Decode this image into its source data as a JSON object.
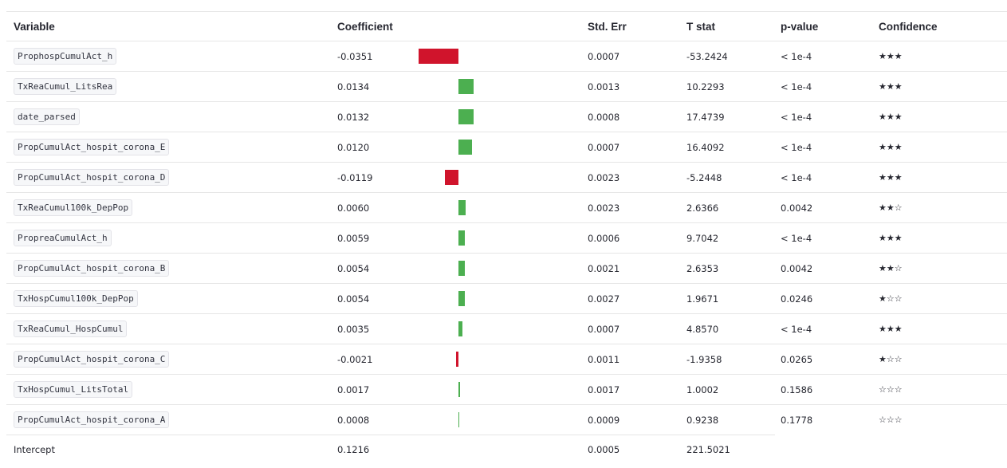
{
  "headers": {
    "variable": "Variable",
    "coefficient": "Coefficient",
    "std_err": "Std. Err",
    "t_stat": "T stat",
    "p_value": "p-value",
    "confidence": "Confidence"
  },
  "colors": {
    "positive": "#4caf50",
    "negative": "#d0142c"
  },
  "bar_scale": {
    "max_abs": 0.0351
  },
  "rows": [
    {
      "variable": "ProphospCumulAct_h",
      "coef": 0.0351,
      "sign": -1,
      "coef_text": "-0.0351",
      "std_err": "0.0007",
      "t_stat": "-53.2424",
      "p_value": "< 1e-4",
      "confidence": "★★★"
    },
    {
      "variable": "TxReaCumul_LitsRea",
      "coef": 0.0134,
      "sign": 1,
      "coef_text": "0.0134",
      "std_err": "0.0013",
      "t_stat": "10.2293",
      "p_value": "< 1e-4",
      "confidence": "★★★"
    },
    {
      "variable": "date_parsed",
      "coef": 0.0132,
      "sign": 1,
      "coef_text": "0.0132",
      "std_err": "0.0008",
      "t_stat": "17.4739",
      "p_value": "< 1e-4",
      "confidence": "★★★"
    },
    {
      "variable": "PropCumulAct_hospit_corona_E",
      "coef": 0.012,
      "sign": 1,
      "coef_text": "0.0120",
      "std_err": "0.0007",
      "t_stat": "16.4092",
      "p_value": "< 1e-4",
      "confidence": "★★★"
    },
    {
      "variable": "PropCumulAct_hospit_corona_D",
      "coef": 0.0119,
      "sign": -1,
      "coef_text": "-0.0119",
      "std_err": "0.0023",
      "t_stat": "-5.2448",
      "p_value": "< 1e-4",
      "confidence": "★★★"
    },
    {
      "variable": "TxReaCumul100k_DepPop",
      "coef": 0.006,
      "sign": 1,
      "coef_text": "0.0060",
      "std_err": "0.0023",
      "t_stat": "2.6366",
      "p_value": "0.0042",
      "confidence": "★★☆"
    },
    {
      "variable": "PropreaCumulAct_h",
      "coef": 0.0059,
      "sign": 1,
      "coef_text": "0.0059",
      "std_err": "0.0006",
      "t_stat": "9.7042",
      "p_value": "< 1e-4",
      "confidence": "★★★"
    },
    {
      "variable": "PropCumulAct_hospit_corona_B",
      "coef": 0.0054,
      "sign": 1,
      "coef_text": "0.0054",
      "std_err": "0.0021",
      "t_stat": "2.6353",
      "p_value": "0.0042",
      "confidence": "★★☆"
    },
    {
      "variable": "TxHospCumul100k_DepPop",
      "coef": 0.0054,
      "sign": 1,
      "coef_text": "0.0054",
      "std_err": "0.0027",
      "t_stat": "1.9671",
      "p_value": "0.0246",
      "confidence": "★☆☆"
    },
    {
      "variable": "TxReaCumul_HospCumul",
      "coef": 0.0035,
      "sign": 1,
      "coef_text": "0.0035",
      "std_err": "0.0007",
      "t_stat": "4.8570",
      "p_value": "< 1e-4",
      "confidence": "★★★"
    },
    {
      "variable": "PropCumulAct_hospit_corona_C",
      "coef": 0.0021,
      "sign": -1,
      "coef_text": "-0.0021",
      "std_err": "0.0011",
      "t_stat": "-1.9358",
      "p_value": "0.0265",
      "confidence": "★☆☆"
    },
    {
      "variable": "TxHospCumul_LitsTotal",
      "coef": 0.0017,
      "sign": 1,
      "coef_text": "0.0017",
      "std_err": "0.0017",
      "t_stat": "1.0002",
      "p_value": "0.1586",
      "confidence": "☆☆☆"
    },
    {
      "variable": "PropCumulAct_hospit_corona_A",
      "coef": 0.0008,
      "sign": 1,
      "coef_text": "0.0008",
      "std_err": "0.0009",
      "t_stat": "0.9238",
      "p_value": "0.1778",
      "confidence": "☆☆☆"
    }
  ],
  "intercept": {
    "variable": "Intercept",
    "coef_text": "0.1216",
    "std_err": "0.0005",
    "t_stat": "221.5021"
  }
}
